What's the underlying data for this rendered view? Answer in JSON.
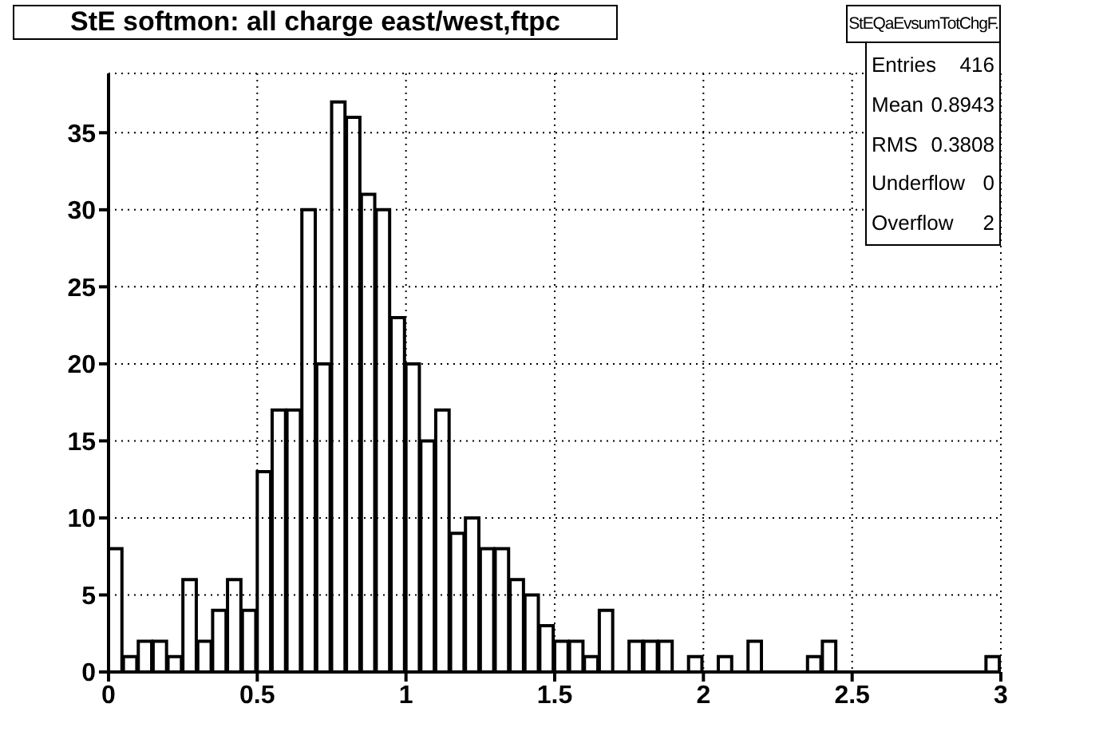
{
  "chart_data": {
    "type": "histogram",
    "title": "StE softmon: all charge east/west,ftpc",
    "bins": [
      0,
      0.05,
      0.1,
      0.15,
      0.2,
      0.25,
      0.3,
      0.35,
      0.4,
      0.45,
      0.5,
      0.55,
      0.6,
      0.65,
      0.7,
      0.75,
      0.8,
      0.85,
      0.9,
      0.95,
      1,
      1.05,
      1.1,
      1.15,
      1.2,
      1.25,
      1.3,
      1.35,
      1.4,
      1.45,
      1.5,
      1.55,
      1.6,
      1.65,
      1.7,
      1.75,
      1.8,
      1.85,
      1.9,
      1.95,
      2,
      2.05,
      2.1,
      2.15,
      2.2,
      2.25,
      2.3,
      2.35,
      2.4,
      2.45,
      2.5,
      2.55,
      2.6,
      2.65,
      2.7,
      2.75,
      2.8,
      2.85,
      2.9,
      2.95,
      3
    ],
    "values": [
      8,
      1,
      2,
      2,
      1,
      6,
      2,
      4,
      6,
      4,
      13,
      17,
      17,
      30,
      20,
      37,
      36,
      31,
      30,
      23,
      20,
      15,
      17,
      9,
      10,
      8,
      8,
      6,
      5,
      3,
      2,
      2,
      1,
      4,
      0,
      2,
      2,
      2,
      0,
      1,
      0,
      1,
      0,
      2,
      0,
      0,
      0,
      1,
      2,
      0,
      0,
      0,
      0,
      0,
      0,
      0,
      0,
      0,
      0,
      1
    ],
    "color": "#000000",
    "xlim": [
      0,
      3
    ],
    "xticks": [
      0,
      0.5,
      1,
      1.5,
      2,
      2.5,
      3
    ],
    "ylim": [
      0,
      38.85
    ],
    "yticks": [
      0,
      5,
      10,
      15,
      20,
      25,
      30,
      35
    ],
    "grid": true,
    "annotations": [
      "StEQaEvsumTotChgF.",
      "Entries",
      "416",
      "Mean",
      "0.8943",
      "RMS",
      "0.3808",
      "Underflow",
      "0",
      "Overflow",
      "2"
    ]
  }
}
